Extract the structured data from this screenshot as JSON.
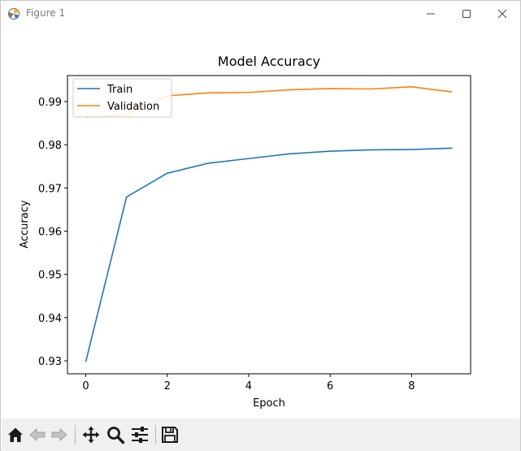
{
  "window": {
    "title": "Figure 1",
    "controls": [
      "minimize",
      "maximize",
      "close"
    ]
  },
  "toolbar": {
    "items": [
      {
        "name": "home-icon"
      },
      {
        "name": "back-icon"
      },
      {
        "name": "forward-icon"
      },
      {
        "name": "pan-icon"
      },
      {
        "name": "zoom-icon"
      },
      {
        "name": "configure-subplots-icon"
      },
      {
        "name": "save-icon"
      }
    ]
  },
  "chart_data": {
    "type": "line",
    "title": "Model Accuracy",
    "xlabel": "Epoch",
    "ylabel": "Accuracy",
    "xlim": [
      -0.45,
      9.45
    ],
    "ylim": [
      0.927,
      0.996
    ],
    "xticks": [
      0,
      2,
      4,
      6,
      8
    ],
    "xtick_labels": [
      "0",
      "2",
      "4",
      "6",
      "8"
    ],
    "yticks": [
      0.93,
      0.94,
      0.95,
      0.96,
      0.97,
      0.98,
      0.99
    ],
    "ytick_labels": [
      "0.93",
      "0.94",
      "0.95",
      "0.96",
      "0.97",
      "0.98",
      "0.99"
    ],
    "grid": false,
    "legend_position": "upper left",
    "x": [
      0,
      1,
      2,
      3,
      4,
      5,
      6,
      7,
      8,
      9
    ],
    "series": [
      {
        "name": "Train",
        "color": "#1f77b4",
        "values": [
          0.9298,
          0.9679,
          0.9734,
          0.9757,
          0.9768,
          0.9779,
          0.9785,
          0.9788,
          0.9789,
          0.9792
        ]
      },
      {
        "name": "Validation",
        "color": "#ff7f0e",
        "values": [
          0.9864,
          0.9869,
          0.9913,
          0.992,
          0.9921,
          0.9927,
          0.993,
          0.9929,
          0.9934,
          0.9922
        ]
      }
    ]
  }
}
